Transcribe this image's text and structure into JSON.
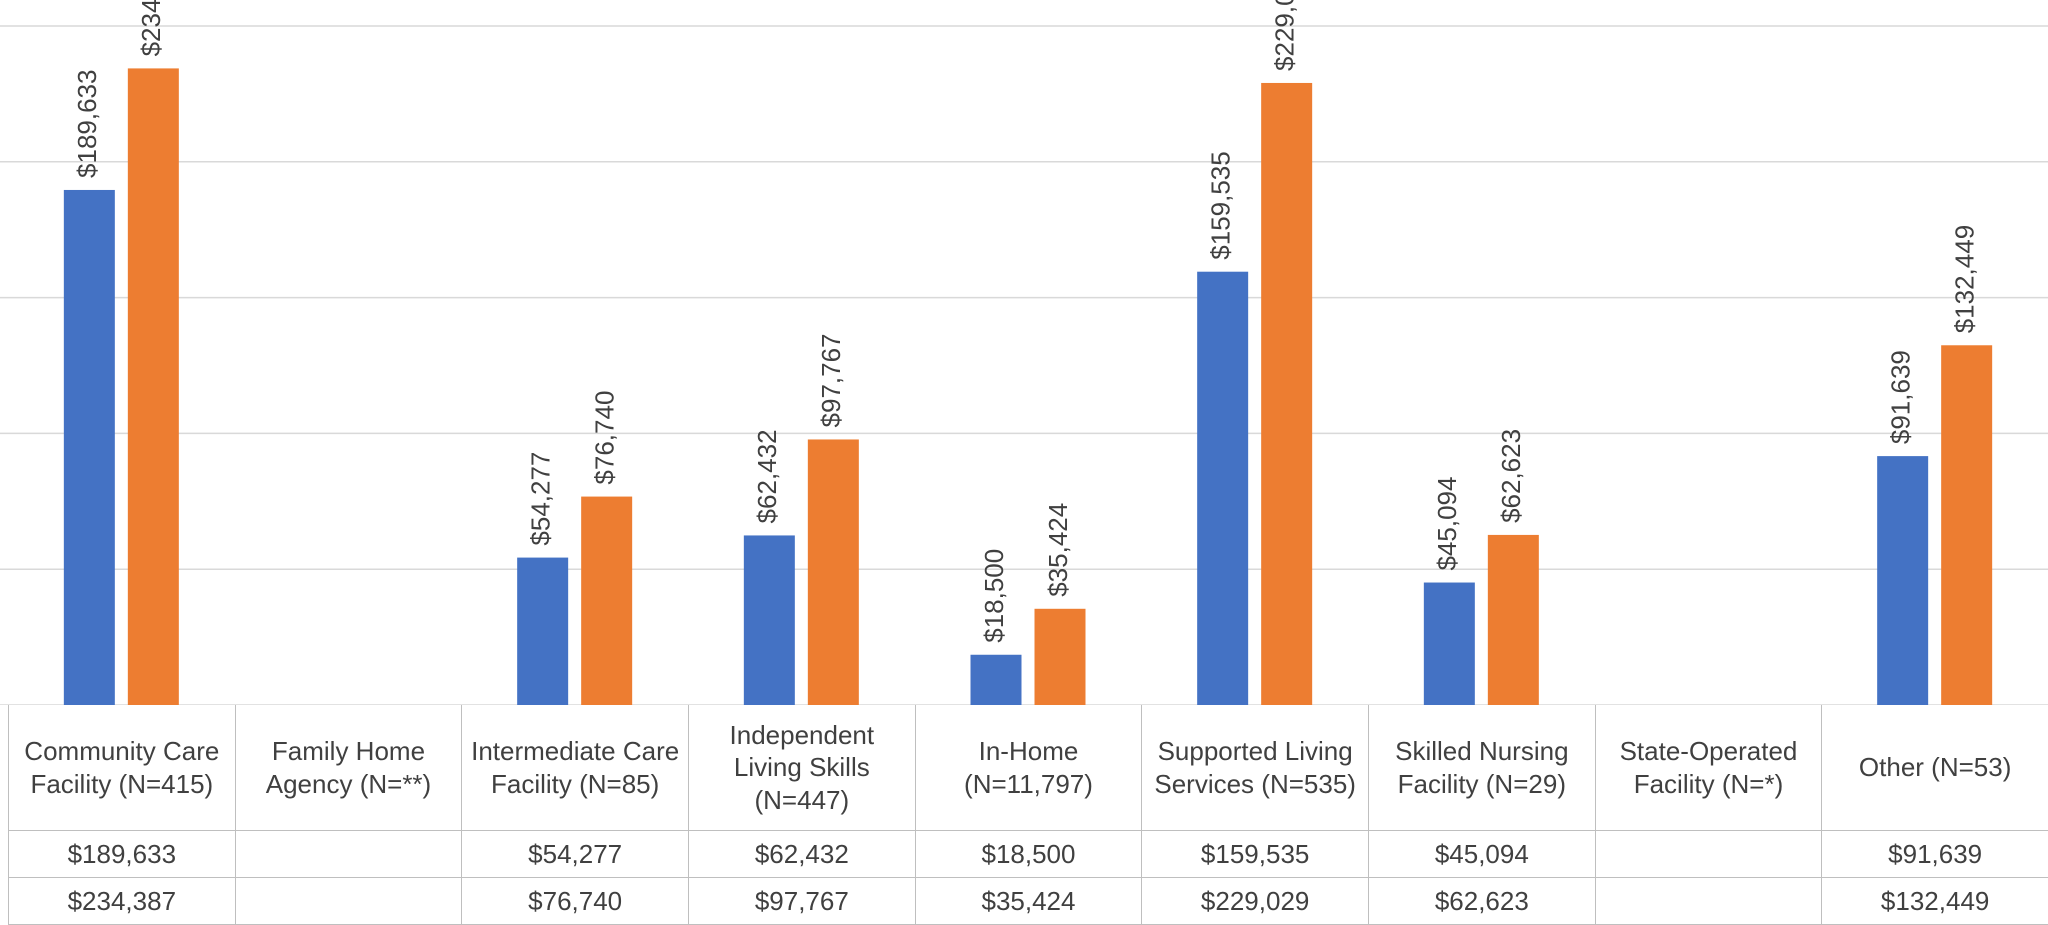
{
  "chart_data": {
    "type": "bar",
    "categories": [
      "Community Care Facility (N=415)",
      "Family Home Agency (N=**)",
      "Intermediate Care Facility (N=85)",
      "Independent Living Skills (N=447)",
      "In-Home (N=11,797)",
      "Supported Living Services (N=535)",
      "Skilled Nursing Facility (N=29)",
      "State-Operated Facility (N=*)",
      "Other (N=53)"
    ],
    "series": [
      {
        "color": "#4472c4",
        "values": [
          189633,
          null,
          54277,
          62432,
          18500,
          159535,
          45094,
          null,
          91639
        ],
        "value_labels": [
          "$189,633",
          null,
          "$54,277",
          "$62,432",
          "$18,500",
          "$159,535",
          "$45,094",
          null,
          "$91,639"
        ]
      },
      {
        "color": "#ed7d31",
        "values": [
          234387,
          null,
          76740,
          97767,
          35424,
          229029,
          62623,
          null,
          132449
        ],
        "value_labels": [
          "$234,387",
          null,
          "$76,740",
          "$97,767",
          "$35,424",
          "$229,029",
          "$62,623",
          null,
          "$132,449"
        ]
      }
    ],
    "ylim": [
      0,
      250000
    ],
    "yticks": [
      0,
      50000,
      100000,
      150000,
      200000,
      250000
    ],
    "grid": true
  }
}
